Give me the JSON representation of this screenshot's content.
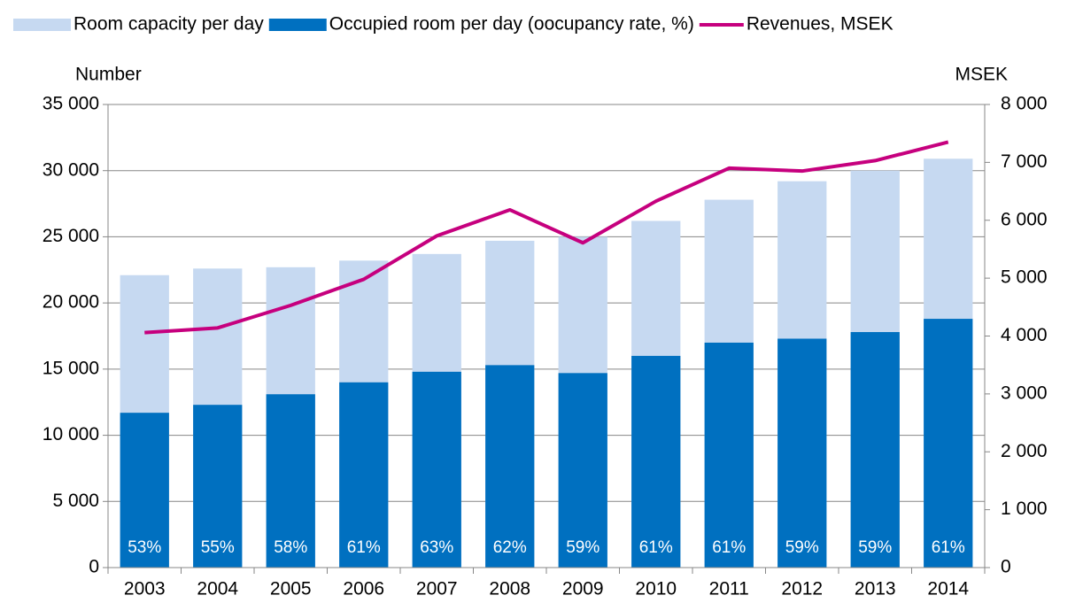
{
  "chart_data": {
    "type": "bar-line",
    "categories": [
      "2003",
      "2004",
      "2005",
      "2006",
      "2007",
      "2008",
      "2009",
      "2010",
      "2011",
      "2012",
      "2013",
      "2014"
    ],
    "y_label": "Number",
    "y2_label": "MSEK",
    "series": [
      {
        "name": "Room capacity per day",
        "color": "#c6d9f1",
        "type": "bar",
        "values": [
          22100,
          22600,
          22700,
          23200,
          23700,
          24700,
          25000,
          26200,
          27800,
          29200,
          30000,
          30900
        ]
      },
      {
        "name": "Occupied room per day (oocupancy rate, %)",
        "color": "#0070c0",
        "type": "bar",
        "values": [
          11700,
          12300,
          13100,
          14000,
          14800,
          15300,
          14700,
          16000,
          17000,
          17300,
          17800,
          18800
        ],
        "data_labels": [
          "53%",
          "55%",
          "58%",
          "61%",
          "63%",
          "62%",
          "59%",
          "61%",
          "61%",
          "59%",
          "59%",
          "61%"
        ]
      },
      {
        "name": "Revenues, MSEK",
        "color": "#c6007e",
        "type": "line",
        "axis": "y2",
        "values": [
          4060,
          4140,
          4530,
          4980,
          5730,
          6180,
          5610,
          6330,
          6900,
          6850,
          7030,
          7350
        ]
      }
    ],
    "ylim": [
      0,
      35000
    ],
    "yticks": [
      0,
      {
        "value": 5000,
        "label": "5 000"
      },
      {
        "value": 10000,
        "label": "10 000"
      },
      {
        "value": 15000,
        "label": "15 000"
      },
      {
        "value": 20000,
        "label": "20 000"
      },
      {
        "value": 25000,
        "label": "25 000"
      },
      {
        "value": 30000,
        "label": "30 000"
      },
      {
        "value": 35000,
        "label": "35 000"
      }
    ],
    "y2lim": [
      0,
      8000
    ],
    "y2ticks": [
      0,
      {
        "value": 1000,
        "label": "1 000"
      },
      {
        "value": 2000,
        "label": "2 000"
      },
      {
        "value": 3000,
        "label": "3 000"
      },
      {
        "value": 4000,
        "label": "4 000"
      },
      {
        "value": 5000,
        "label": "5 000"
      },
      {
        "value": 6000,
        "label": "6 000"
      },
      {
        "value": 7000,
        "label": "7 000"
      },
      {
        "value": 8000,
        "label": "8 000"
      }
    ],
    "grid": true
  }
}
